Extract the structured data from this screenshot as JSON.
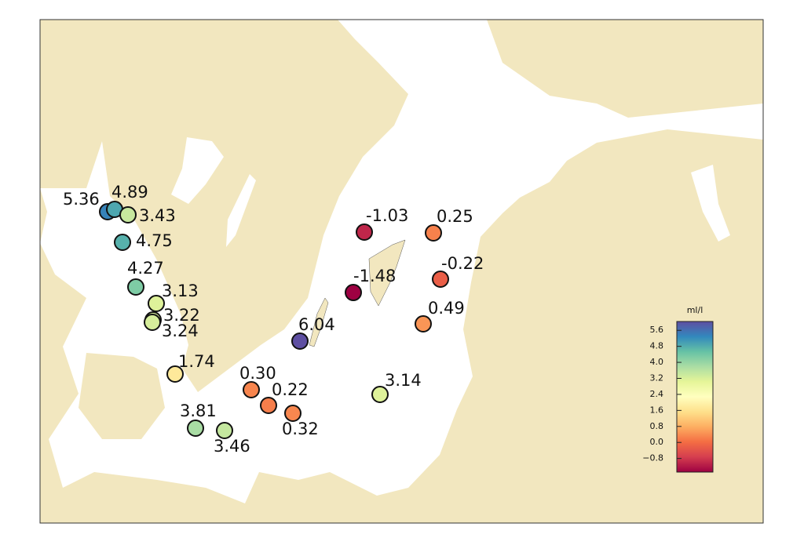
{
  "map": {
    "stations": {
      "values": [
        5.36,
        4.89,
        3.43,
        4.75,
        4.27,
        3.13,
        3.22,
        3.24,
        1.74,
        6.04,
        0.3,
        0.22,
        0.32,
        3.81,
        3.46,
        -1.03,
        0.25,
        -1.48,
        -0.22,
        0.49,
        3.14
      ],
      "value_labels": [
        "5.36",
        "4.89",
        "3.43",
        "4.75",
        "4.27",
        "3.13",
        "3.22",
        "3.24",
        "1.74",
        "6.04",
        "0.30",
        "0.22",
        "0.32",
        "3.81",
        "3.46",
        "-1.03",
        "0.25",
        "-1.48",
        "-0.22",
        "0.49",
        "3.14"
      ]
    },
    "colorbar": {
      "title": "ml/l",
      "ticks": [
        5.6,
        4.8,
        {
          "value": 4,
          "label": "4.0"
        },
        3.2,
        2.4,
        1.6,
        0.8,
        {
          "value": 0,
          "label": "0.0"
        },
        {
          "value": -0.8,
          "label": "−0.8"
        }
      ]
    }
  }
}
